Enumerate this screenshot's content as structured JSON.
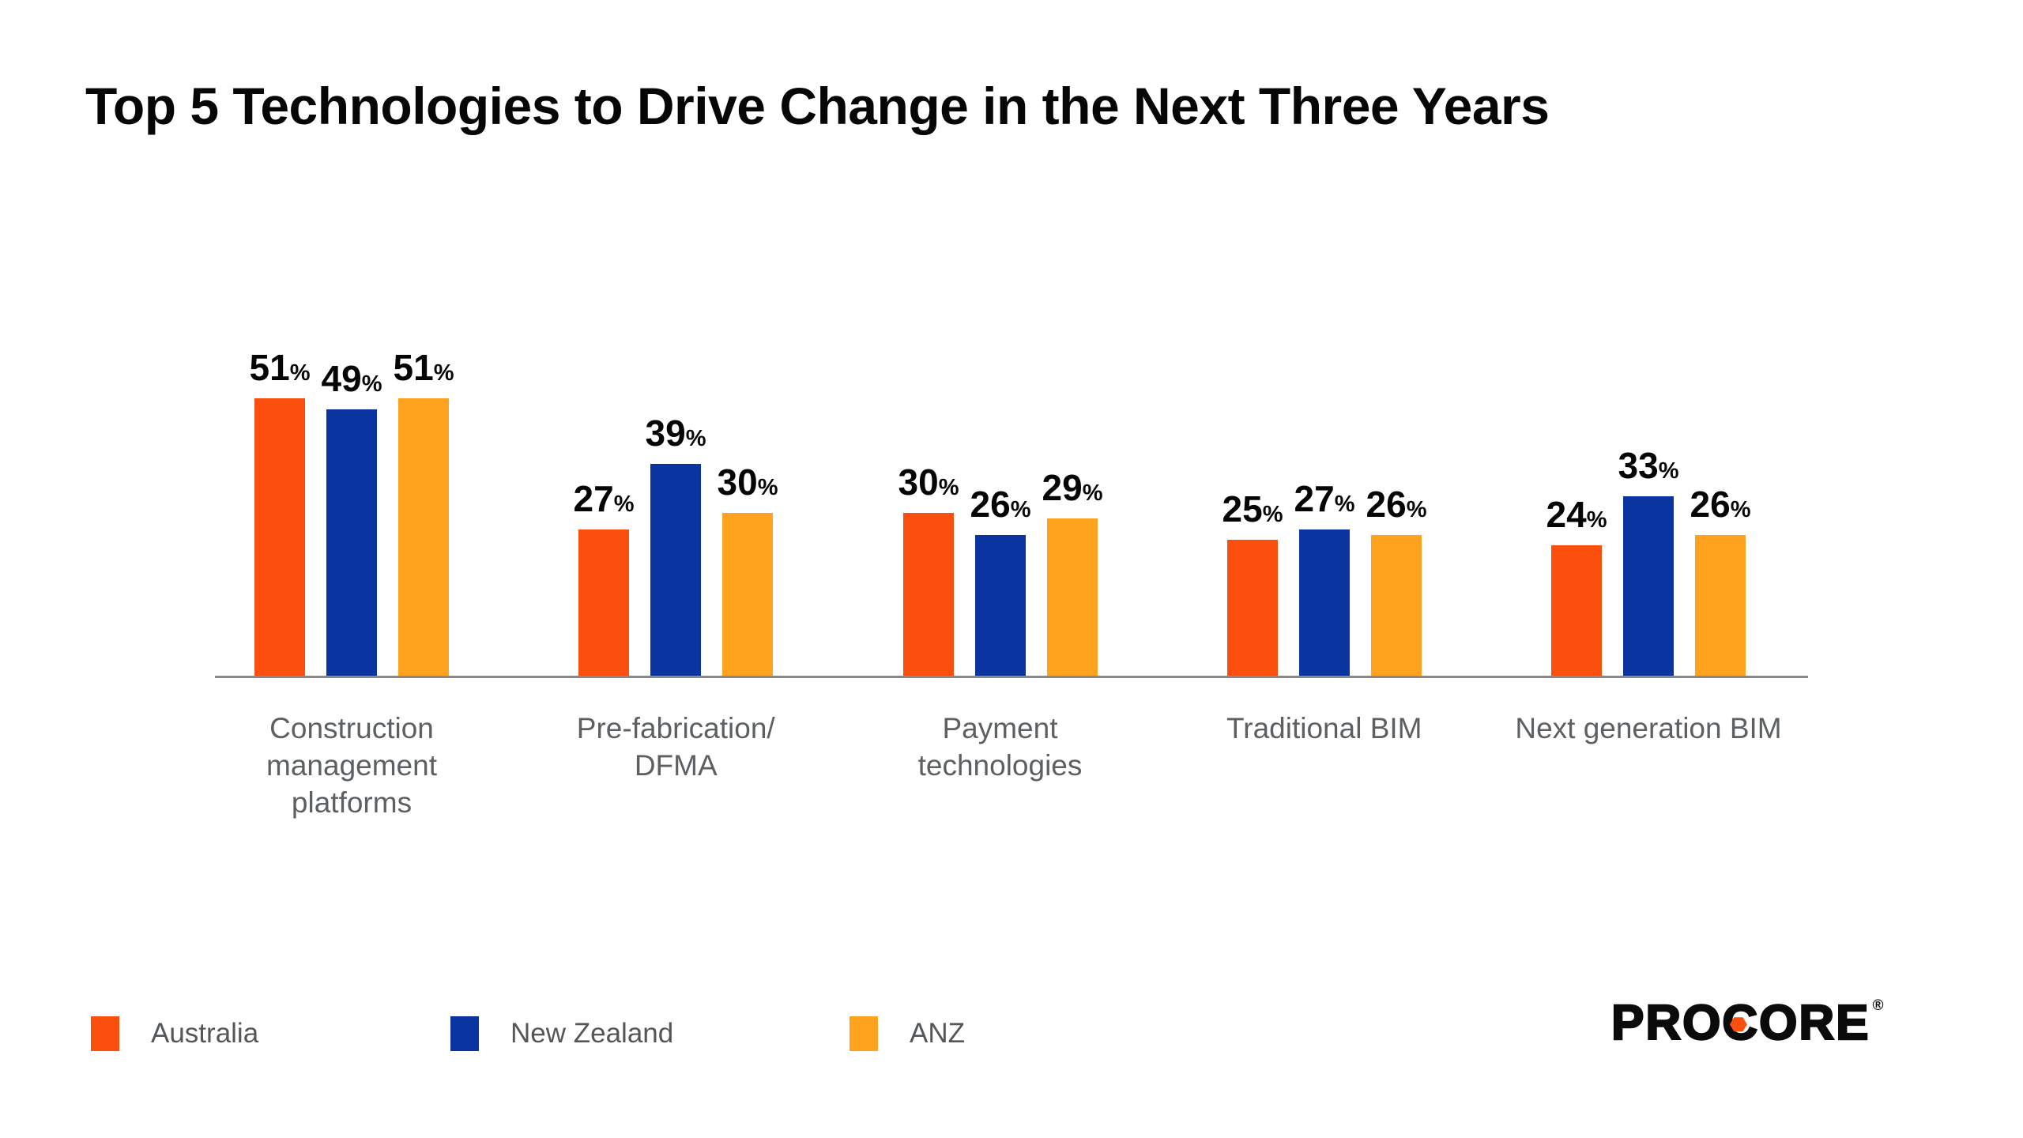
{
  "title": "Top 5 Technologies to Drive Change in the Next Three Years",
  "chart_data": {
    "type": "bar",
    "title": "Top 5 Technologies to Drive Change in the Next Three Years",
    "categories": [
      "Construction management platforms",
      "Pre-fabrication/ DFMA",
      "Payment technologies",
      "Traditional BIM",
      "Next generation BIM"
    ],
    "category_lines": [
      "Construction\nmanagement\nplatforms",
      "Pre-fabrication/\nDFMA",
      "Payment\ntechnologies",
      "Traditional BIM",
      "Next generation BIM"
    ],
    "series": [
      {
        "name": "Australia",
        "color": "#FB4F0E",
        "values": [
          51,
          27,
          30,
          25,
          24
        ]
      },
      {
        "name": "New Zealand",
        "color": "#0A34A0",
        "values": [
          49,
          39,
          26,
          27,
          33
        ]
      },
      {
        "name": "ANZ",
        "color": "#FFA21E",
        "values": [
          51,
          30,
          29,
          26,
          26
        ]
      }
    ],
    "value_suffix": "%",
    "xlabel": "",
    "ylabel": "",
    "ylim": [
      0,
      55
    ],
    "grid": false,
    "y_axis_visible": false,
    "data_labels": true,
    "legend_position": "bottom-left"
  },
  "legend": {
    "items": [
      {
        "label": "Australia",
        "color": "#FB4F0E"
      },
      {
        "label": "New Zealand",
        "color": "#0A34A0"
      },
      {
        "label": "ANZ",
        "color": "#FFA21E"
      }
    ]
  },
  "logo": {
    "text": "PROCORE",
    "registered_mark": "®",
    "hex_color": "#FB4F0E",
    "hex_letter_index": 3
  },
  "colors": {
    "australia_orange": "#FB4F0E",
    "new_zealand_blue": "#0A34A0",
    "anz_amber": "#FFA21E",
    "axis_gray": "#898989",
    "label_gray": "#5c6063",
    "text_black": "#060606"
  }
}
